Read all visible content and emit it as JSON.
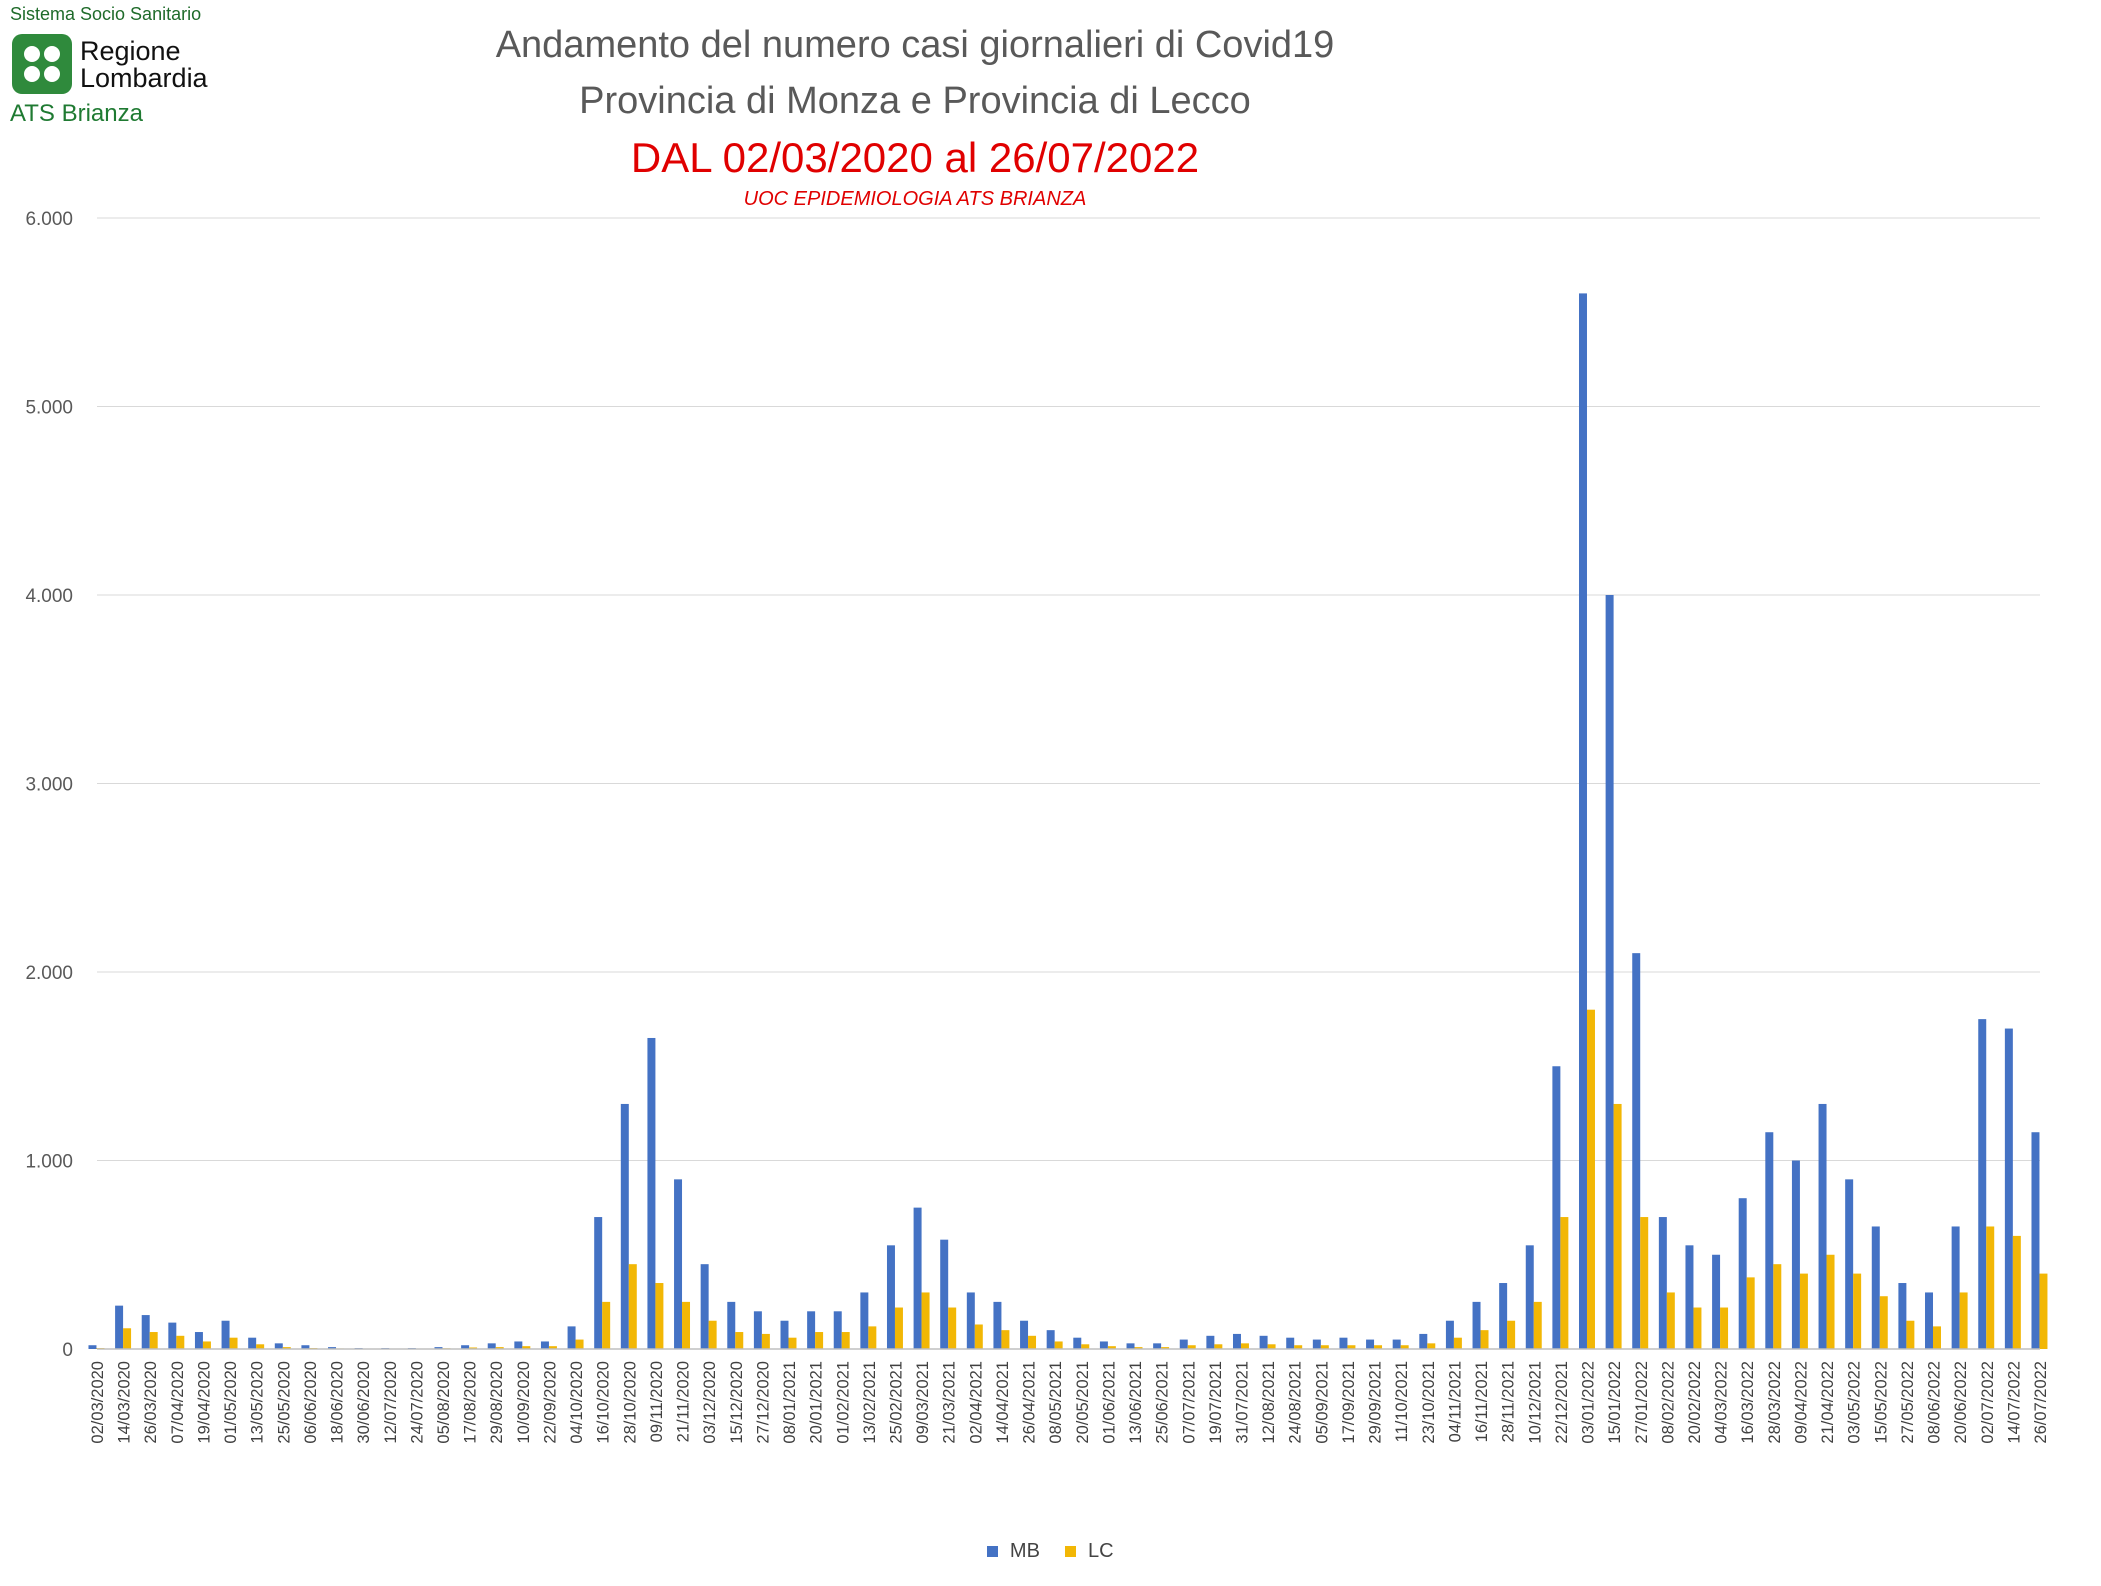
{
  "logo": {
    "top_text": "Sistema Socio Sanitario",
    "name_line1": "Regione",
    "name_line2": "Lombardia",
    "bottom_text": "ATS Brianza"
  },
  "colors": {
    "MB": "#4472C4",
    "LC": "#F2B705",
    "grid": "#d9d9d9",
    "axis_text": "#595959"
  },
  "chart_data": {
    "type": "bar",
    "title_lines": [
      "Andamento del numero casi giornalieri di Covid19",
      "Provincia di Monza e Provincia di Lecco"
    ],
    "subtitle": "DAL 02/03/2020 al 26/07/2022",
    "note": "UOC EPIDEMIOLOGIA ATS BRIANZA",
    "ylim": [
      0,
      6000
    ],
    "yticks": [
      0,
      1000,
      2000,
      3000,
      4000,
      5000,
      6000
    ],
    "ytick_labels": [
      "0",
      "1.000",
      "2.000",
      "3.000",
      "4.000",
      "5.000",
      "6.000"
    ],
    "xtick_labels": [
      "02/03/2020",
      "14/03/2020",
      "26/03/2020",
      "07/04/2020",
      "19/04/2020",
      "01/05/2020",
      "13/05/2020",
      "25/05/2020",
      "06/06/2020",
      "18/06/2020",
      "30/06/2020",
      "12/07/2020",
      "24/07/2020",
      "05/08/2020",
      "17/08/2020",
      "29/08/2020",
      "10/09/2020",
      "22/09/2020",
      "04/10/2020",
      "16/10/2020",
      "28/10/2020",
      "09/11/2020",
      "21/11/2020",
      "03/12/2020",
      "15/12/2020",
      "27/12/2020",
      "08/01/2021",
      "20/01/2021",
      "01/02/2021",
      "13/02/2021",
      "25/02/2021",
      "09/03/2021",
      "21/03/2021",
      "02/04/2021",
      "14/04/2021",
      "26/04/2021",
      "08/05/2021",
      "20/05/2021",
      "01/06/2021",
      "13/06/2021",
      "25/06/2021",
      "07/07/2021",
      "19/07/2021",
      "31/07/2021",
      "12/08/2021",
      "24/08/2021",
      "05/09/2021",
      "17/09/2021",
      "29/09/2021",
      "11/10/2021",
      "23/10/2021",
      "04/11/2021",
      "16/11/2021",
      "28/11/2021",
      "10/12/2021",
      "22/12/2021",
      "03/01/2022",
      "15/01/2022",
      "27/01/2022",
      "08/02/2022",
      "20/02/2022",
      "04/03/2022",
      "16/03/2022",
      "28/03/2022",
      "09/04/2022",
      "21/04/2022",
      "03/05/2022",
      "15/05/2022",
      "27/05/2022",
      "08/06/2022",
      "20/06/2022",
      "02/07/2022",
      "14/07/2022",
      "26/07/2022"
    ],
    "series_names": [
      "MB",
      "LC"
    ],
    "series_peak_values_by_tick": {
      "MB": [
        20,
        230,
        180,
        140,
        90,
        150,
        60,
        30,
        20,
        10,
        5,
        5,
        5,
        10,
        20,
        30,
        40,
        40,
        120,
        700,
        1300,
        1650,
        900,
        450,
        250,
        200,
        150,
        200,
        200,
        300,
        550,
        750,
        580,
        300,
        250,
        150,
        100,
        60,
        40,
        30,
        30,
        50,
        70,
        80,
        70,
        60,
        50,
        60,
        50,
        50,
        80,
        150,
        250,
        350,
        550,
        1500,
        5600,
        4000,
        2100,
        700,
        550,
        500,
        800,
        1150,
        1000,
        1300,
        900,
        650,
        350,
        300,
        650,
        1750,
        1700,
        1150
      ],
      "LC": [
        5,
        110,
        90,
        70,
        40,
        60,
        25,
        10,
        5,
        3,
        2,
        2,
        2,
        4,
        8,
        10,
        15,
        15,
        50,
        250,
        450,
        350,
        250,
        150,
        90,
        80,
        60,
        90,
        90,
        120,
        220,
        300,
        220,
        130,
        100,
        70,
        40,
        25,
        15,
        10,
        10,
        20,
        25,
        30,
        25,
        20,
        20,
        20,
        20,
        20,
        30,
        60,
        100,
        150,
        250,
        700,
        1800,
        1300,
        700,
        300,
        220,
        220,
        380,
        450,
        400,
        500,
        400,
        280,
        150,
        120,
        300,
        650,
        600,
        400
      ]
    },
    "legend": "bottom-center",
    "grid": true
  }
}
